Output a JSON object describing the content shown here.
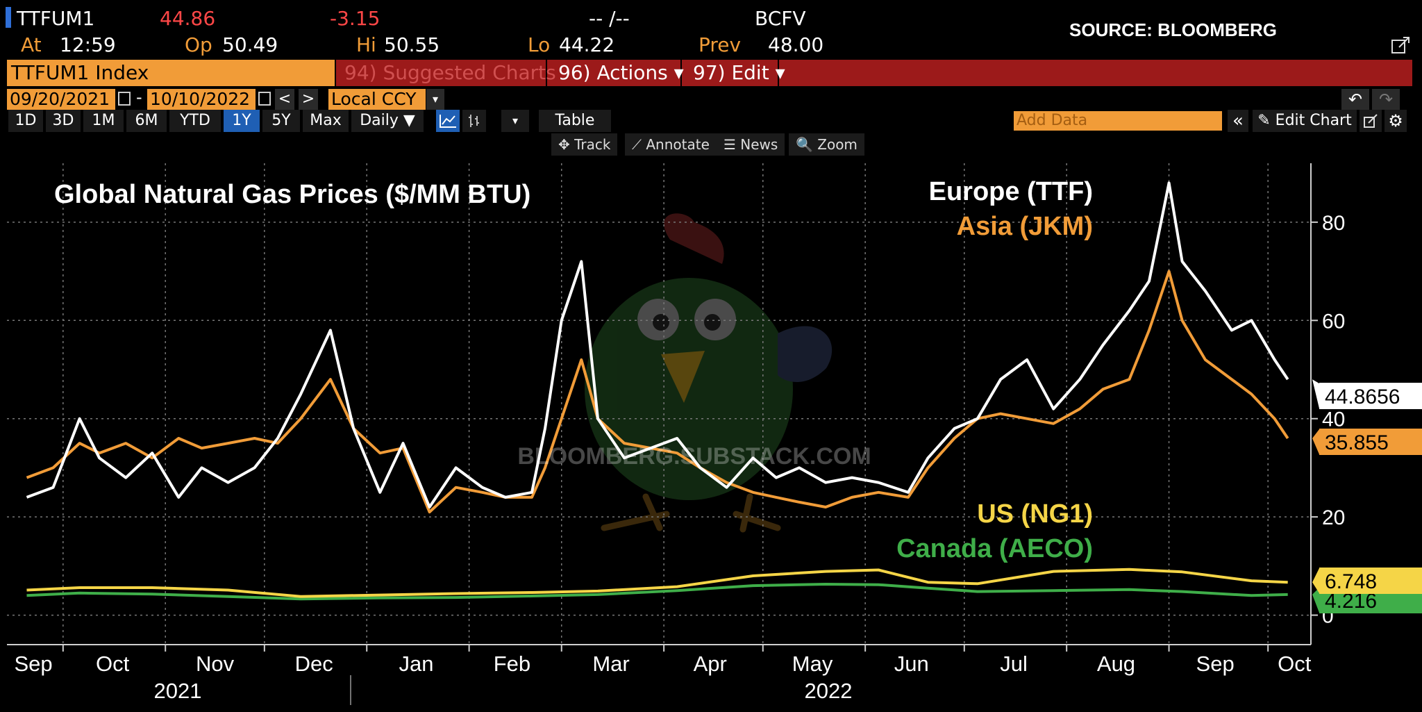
{
  "header": {
    "ticker": "TTFUM1",
    "last": "44.86",
    "change": "-3.15",
    "bidask": "-- /--",
    "source_code": "BCFV",
    "at_label": "At",
    "at_value": "12:59",
    "op_label": "Op",
    "op_value": "50.49",
    "hi_label": "Hi",
    "hi_value": "50.55",
    "lo_label": "Lo",
    "lo_value": "44.22",
    "prev_label": "Prev",
    "prev_value": "48.00",
    "source_note": "SOURCE: BLOOMBERG"
  },
  "menubar": {
    "security": "TTFUM1 Index",
    "suggested": "94) Suggested Charts",
    "actions": "96) Actions ▾",
    "edit": "97) Edit ▾"
  },
  "daterow": {
    "start": "09/20/2021",
    "dash": "-",
    "end": "10/10/2022",
    "prev": "<",
    "next": ">",
    "currency": "Local CCY",
    "currency_caret": "▾",
    "undo": "↶",
    "redo": "↷"
  },
  "periods": [
    "1D",
    "3D",
    "1M",
    "6M",
    "YTD",
    "1Y",
    "5Y",
    "Max"
  ],
  "selected_period": "1Y",
  "controls": {
    "frequency": "Daily ▼",
    "table": "Table",
    "add_data_placeholder": "Add Data",
    "collapse": "«",
    "edit_chart": "✎ Edit Chart",
    "caret": "▾"
  },
  "tools": [
    "✥ Track",
    "⟋ Annotate",
    "☰ News",
    "🔍 Zoom"
  ],
  "watermark": "BLOOMBERG.SUBSTACK.COM",
  "colors": {
    "europe": "#ffffff",
    "asia": "#f19c38",
    "us": "#f5d547",
    "canada": "#3fae49",
    "menubar_red": "#9c1a1a",
    "selected_blue": "#1f5fb4"
  },
  "chart_data": {
    "type": "line",
    "title": "Global Natural Gas Prices ($/MM BTU)",
    "y_ticks": [
      0,
      20,
      40,
      60,
      80
    ],
    "ylim": [
      -6,
      92
    ],
    "x_months": [
      "Sep",
      "Oct",
      "Nov",
      "Dec",
      "Jan",
      "Feb",
      "Mar",
      "Apr",
      "May",
      "Jun",
      "Jul",
      "Aug",
      "Sep",
      "Oct"
    ],
    "x_month_dates": [
      "2021-09-20",
      "2021-10-05",
      "2021-11-01",
      "2021-12-01",
      "2022-01-01",
      "2022-02-01",
      "2022-03-01",
      "2022-04-01",
      "2022-05-01",
      "2022-06-01",
      "2022-07-01",
      "2022-08-01",
      "2022-09-01",
      "2022-10-06"
    ],
    "year_labels": [
      "2021",
      "2022"
    ],
    "grid": true,
    "legend_position": "top-right",
    "series": [
      {
        "name": "Europe (TTF)",
        "last_value": "44.8656",
        "x": [
          "2021-09-20",
          "2021-09-28",
          "2021-10-06",
          "2021-10-12",
          "2021-10-20",
          "2021-10-28",
          "2021-11-05",
          "2021-11-12",
          "2021-11-20",
          "2021-11-28",
          "2021-12-05",
          "2021-12-12",
          "2021-12-21",
          "2021-12-28",
          "2022-01-05",
          "2022-01-12",
          "2022-01-20",
          "2022-01-28",
          "2022-02-05",
          "2022-02-12",
          "2022-02-20",
          "2022-02-24",
          "2022-03-01",
          "2022-03-07",
          "2022-03-12",
          "2022-03-20",
          "2022-03-28",
          "2022-04-05",
          "2022-04-12",
          "2022-04-20",
          "2022-04-28",
          "2022-05-05",
          "2022-05-12",
          "2022-05-20",
          "2022-05-28",
          "2022-06-05",
          "2022-06-14",
          "2022-06-20",
          "2022-06-28",
          "2022-07-05",
          "2022-07-12",
          "2022-07-20",
          "2022-07-28",
          "2022-08-05",
          "2022-08-12",
          "2022-08-20",
          "2022-08-26",
          "2022-09-01",
          "2022-09-05",
          "2022-09-12",
          "2022-09-20",
          "2022-09-26",
          "2022-10-03",
          "2022-10-07"
        ],
        "y": [
          24,
          26,
          40,
          32,
          28,
          33,
          24,
          30,
          27,
          30,
          36,
          45,
          58,
          38,
          25,
          35,
          22,
          30,
          26,
          24,
          25,
          38,
          60,
          72,
          40,
          32,
          34,
          36,
          30,
          26,
          32,
          28,
          30,
          27,
          28,
          27,
          25,
          32,
          38,
          40,
          48,
          52,
          42,
          48,
          55,
          62,
          68,
          88,
          72,
          66,
          58,
          60,
          52,
          48
        ]
      },
      {
        "name": "Asia (JKM)",
        "last_value": "35.855",
        "x": [
          "2021-09-20",
          "2021-09-28",
          "2021-10-06",
          "2021-10-12",
          "2021-10-20",
          "2021-10-28",
          "2021-11-05",
          "2021-11-12",
          "2021-11-20",
          "2021-11-28",
          "2021-12-05",
          "2021-12-12",
          "2021-12-21",
          "2021-12-28",
          "2022-01-05",
          "2022-01-12",
          "2022-01-20",
          "2022-01-28",
          "2022-02-05",
          "2022-02-12",
          "2022-02-20",
          "2022-02-24",
          "2022-03-01",
          "2022-03-07",
          "2022-03-12",
          "2022-03-20",
          "2022-03-28",
          "2022-04-05",
          "2022-04-12",
          "2022-04-20",
          "2022-04-28",
          "2022-05-05",
          "2022-05-12",
          "2022-05-20",
          "2022-05-28",
          "2022-06-05",
          "2022-06-14",
          "2022-06-20",
          "2022-06-28",
          "2022-07-05",
          "2022-07-12",
          "2022-07-20",
          "2022-07-28",
          "2022-08-05",
          "2022-08-12",
          "2022-08-20",
          "2022-08-26",
          "2022-09-01",
          "2022-09-05",
          "2022-09-12",
          "2022-09-20",
          "2022-09-26",
          "2022-10-03",
          "2022-10-07"
        ],
        "y": [
          28,
          30,
          35,
          33,
          35,
          32,
          36,
          34,
          35,
          36,
          35,
          40,
          48,
          38,
          33,
          34,
          21,
          26,
          25,
          24,
          24,
          30,
          40,
          52,
          40,
          35,
          34,
          33,
          30,
          27,
          25,
          24,
          23,
          22,
          24,
          25,
          24,
          30,
          36,
          40,
          41,
          40,
          39,
          42,
          46,
          48,
          58,
          70,
          60,
          52,
          48,
          45,
          40,
          36
        ]
      },
      {
        "name": "US (NG1)",
        "last_value": "6.748",
        "x": [
          "2021-09-20",
          "2021-10-06",
          "2021-10-28",
          "2021-11-20",
          "2021-12-12",
          "2022-01-05",
          "2022-01-28",
          "2022-02-20",
          "2022-03-12",
          "2022-04-05",
          "2022-04-28",
          "2022-05-20",
          "2022-06-05",
          "2022-06-20",
          "2022-07-05",
          "2022-07-28",
          "2022-08-20",
          "2022-09-05",
          "2022-09-26",
          "2022-10-07"
        ],
        "y": [
          5.1,
          5.6,
          5.6,
          5.1,
          3.8,
          4.1,
          4.4,
          4.6,
          4.9,
          5.8,
          8.0,
          8.9,
          9.2,
          6.7,
          6.4,
          8.9,
          9.3,
          8.8,
          7.0,
          6.7
        ]
      },
      {
        "name": "Canada (AECO)",
        "last_value": "4.216",
        "x": [
          "2021-09-20",
          "2021-10-06",
          "2021-10-28",
          "2021-11-20",
          "2021-12-12",
          "2022-01-05",
          "2022-01-28",
          "2022-02-20",
          "2022-03-12",
          "2022-04-05",
          "2022-04-28",
          "2022-05-20",
          "2022-06-05",
          "2022-06-20",
          "2022-07-05",
          "2022-07-28",
          "2022-08-20",
          "2022-09-05",
          "2022-09-26",
          "2022-10-07"
        ],
        "y": [
          4.0,
          4.5,
          4.3,
          3.8,
          3.3,
          3.5,
          3.6,
          3.9,
          4.2,
          5.0,
          6.0,
          6.3,
          6.2,
          5.5,
          4.8,
          5.0,
          5.2,
          4.8,
          4.0,
          4.2
        ]
      }
    ]
  }
}
